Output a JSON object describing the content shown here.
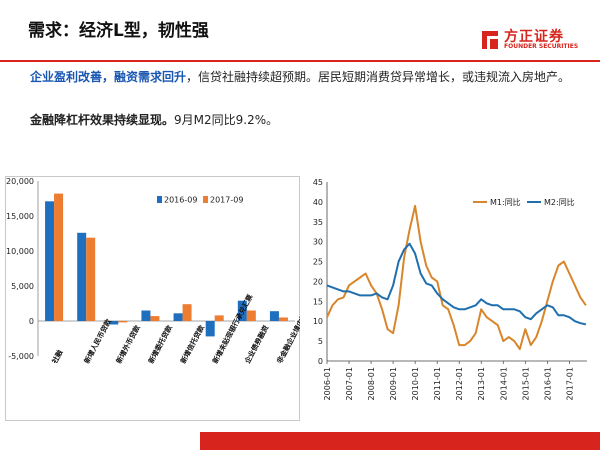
{
  "header": {
    "title": "需求：经济L型，韧性强",
    "logo_cn": "方正证券",
    "logo_en": "FOUNDER SECURITIES"
  },
  "body": {
    "p1_hl1": "企业盈利改善，",
    "p1_hl2": "融资需求回升",
    "p1_rest": "，信贷社融持续超预期。居民短期消费贷异常增长，或违规流入房地产。",
    "p2_bold": "金融降杠杆效果持续显现。",
    "p2_rest": "9月M2同比9.2%。"
  },
  "colors": {
    "brand": "#d7251e",
    "s2016": "#1f6fc0",
    "s2017": "#ed7d31",
    "m1": "#d8862c",
    "m2": "#1f6fae"
  },
  "chart_data": [
    {
      "type": "bar",
      "categories": [
        "社融",
        "新增人民币贷款",
        "新增外币贷款",
        "新增委托贷款",
        "新增信托贷款",
        "新增未贴现银行承兑汇票",
        "企业债券融资",
        "非金融企业境内股票融资"
      ],
      "series": [
        {
          "name": "2016-09",
          "values": [
            17100,
            12600,
            -500,
            1500,
            1100,
            -2200,
            2900,
            1400
          ]
        },
        {
          "name": "2017-09",
          "values": [
            18200,
            11900,
            -200,
            700,
            2400,
            800,
            1500,
            500
          ]
        }
      ],
      "yticks": [
        "20,000",
        "15,000",
        "10,000",
        "5,000",
        "0",
        "-5,000"
      ],
      "ylim": [
        -5000,
        20000
      ],
      "legend_position": "top-right"
    },
    {
      "type": "line",
      "x_labels": [
        "2006-01",
        "2007-01",
        "2008-01",
        "2009-01",
        "2010-01",
        "2011-01",
        "2012-01",
        "2013-01",
        "2014-01",
        "2015-01",
        "2016-01",
        "2017-01"
      ],
      "yticks": [
        "45",
        "40",
        "35",
        "30",
        "25",
        "20",
        "15",
        "10",
        "5",
        "0"
      ],
      "ylim": [
        0,
        45
      ],
      "legend_position": "top-right",
      "series": [
        {
          "name": "M1:同比",
          "x": [
            2006.0,
            2006.25,
            2006.5,
            2006.75,
            2007.0,
            2007.25,
            2007.5,
            2007.75,
            2008.0,
            2008.25,
            2008.5,
            2008.75,
            2009.0,
            2009.25,
            2009.5,
            2009.75,
            2010.0,
            2010.25,
            2010.5,
            2010.75,
            2011.0,
            2011.25,
            2011.5,
            2011.75,
            2012.0,
            2012.25,
            2012.5,
            2012.75,
            2013.0,
            2013.25,
            2013.5,
            2013.75,
            2014.0,
            2014.25,
            2014.5,
            2014.75,
            2015.0,
            2015.25,
            2015.5,
            2015.75,
            2016.0,
            2016.25,
            2016.5,
            2016.75,
            2017.0,
            2017.25,
            2017.5,
            2017.75
          ],
          "values": [
            11,
            14,
            15.5,
            16,
            19,
            20,
            21,
            22,
            19,
            17,
            13,
            8,
            7,
            14,
            26,
            33,
            39,
            30,
            24,
            21,
            20,
            14,
            13,
            9,
            4,
            4,
            5,
            7,
            13,
            11,
            10,
            9,
            5,
            6,
            5,
            3,
            8,
            4,
            6,
            10,
            15,
            20,
            24,
            25,
            22,
            19,
            16,
            14
          ]
        },
        {
          "name": "M2:同比",
          "x": [
            2006.0,
            2006.25,
            2006.5,
            2006.75,
            2007.0,
            2007.25,
            2007.5,
            2007.75,
            2008.0,
            2008.25,
            2008.5,
            2008.75,
            2009.0,
            2009.25,
            2009.5,
            2009.75,
            2010.0,
            2010.25,
            2010.5,
            2010.75,
            2011.0,
            2011.25,
            2011.5,
            2011.75,
            2012.0,
            2012.25,
            2012.5,
            2012.75,
            2013.0,
            2013.25,
            2013.5,
            2013.75,
            2014.0,
            2014.25,
            2014.5,
            2014.75,
            2015.0,
            2015.25,
            2015.5,
            2015.75,
            2016.0,
            2016.25,
            2016.5,
            2016.75,
            2017.0,
            2017.25,
            2017.5,
            2017.75
          ],
          "values": [
            19,
            18.5,
            18,
            17.5,
            17.5,
            17,
            16.5,
            16.5,
            16.5,
            17,
            16,
            15.5,
            19,
            25,
            28,
            29.5,
            27,
            22,
            19.5,
            19,
            17,
            15.5,
            14.5,
            13.5,
            13,
            13,
            13.5,
            14,
            15.5,
            14.5,
            14,
            14,
            13,
            13,
            13,
            12.5,
            11,
            10.5,
            12,
            13,
            14,
            13.5,
            11.5,
            11.5,
            11,
            10,
            9.5,
            9.2
          ]
        }
      ]
    }
  ]
}
